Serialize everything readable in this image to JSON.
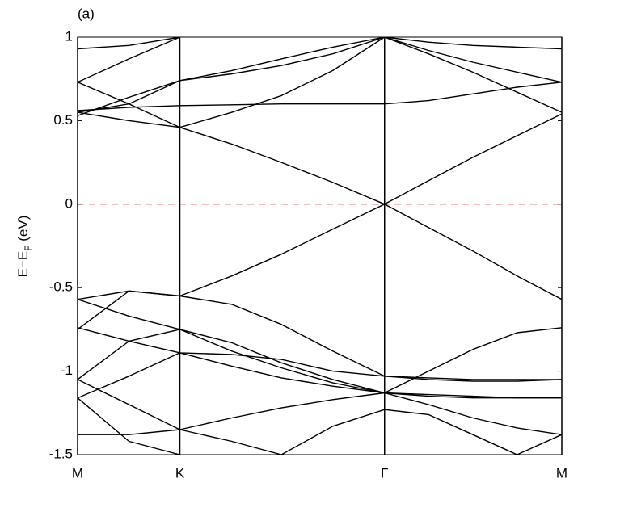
{
  "chart_data": {
    "type": "line",
    "title": "(a)",
    "ylabel": [
      "E−E",
      "F",
      " (eV)"
    ],
    "x": [
      0,
      0.29,
      0.577,
      0.87,
      1.15,
      1.44,
      1.732,
      1.98,
      2.23,
      2.48,
      2.732
    ],
    "xlim": [
      0,
      2.732
    ],
    "xticks": [
      {
        "value": 0,
        "label": "M"
      },
      {
        "value": 0.577,
        "label": "K"
      },
      {
        "value": 1.732,
        "label": "Γ"
      },
      {
        "value": 2.732,
        "label": "M"
      }
    ],
    "ylim": [
      -1.5,
      1
    ],
    "yticks": [
      1,
      0.5,
      0,
      -0.5,
      -1,
      -1.5
    ],
    "xgrid": true,
    "color": "#000000",
    "reference_line": {
      "value": 0,
      "color": "#e87a7a"
    },
    "series": [
      {
        "values": [
          0.55,
          0.5,
          0.46,
          0.36,
          0.25,
          0.13,
          0,
          0.14,
          0.28,
          0.41,
          0.54
        ]
      },
      {
        "values": [
          -0.57,
          -0.52,
          -0.55,
          -0.43,
          -0.3,
          -0.15,
          0,
          -0.14,
          -0.28,
          -0.43,
          -0.57
        ]
      },
      {
        "values": [
          0.56,
          0.58,
          0.59,
          0.595,
          0.6,
          0.6,
          0.6,
          0.62,
          0.66,
          0.7,
          0.73
        ]
      },
      {
        "values": [
          0.73,
          0.87,
          1.0,
          null,
          null,
          null,
          null,
          null,
          null,
          null,
          null
        ]
      },
      {
        "values": [
          0.93,
          0.95,
          1.0,
          null,
          null,
          null,
          null,
          null,
          null,
          null,
          null
        ]
      },
      {
        "values": [
          0.53,
          0.64,
          0.74,
          0.8,
          0.87,
          0.94,
          1.0,
          0.9,
          0.79,
          0.67,
          0.55
        ]
      },
      {
        "values": [
          0.55,
          0.6,
          0.74,
          0.78,
          0.83,
          0.9,
          1.0,
          0.97,
          0.95,
          0.94,
          0.93
        ]
      },
      {
        "values": [
          0.73,
          0.6,
          0.46,
          0.55,
          0.65,
          0.8,
          1.0,
          0.92,
          0.85,
          0.79,
          0.73
        ]
      },
      {
        "values": [
          -0.74,
          -0.82,
          -0.89,
          -0.9,
          -0.93,
          -1.0,
          -1.03,
          -1.04,
          -1.05,
          -1.05,
          -1.05
        ]
      },
      {
        "values": [
          -1.05,
          -0.82,
          -0.75,
          -0.83,
          -0.95,
          -1.05,
          -1.13,
          -1.0,
          -0.87,
          -0.77,
          -0.74
        ]
      },
      {
        "values": [
          -1.16,
          -1.03,
          -0.89,
          -0.97,
          -1.04,
          -1.09,
          -1.13,
          -1.15,
          -1.16,
          -1.16,
          -1.16
        ]
      },
      {
        "values": [
          -1.38,
          -1.38,
          -1.35,
          -1.28,
          -1.22,
          -1.17,
          -1.13,
          -1.14,
          -1.15,
          -1.16,
          -1.16
        ]
      },
      {
        "values": [
          -0.57,
          -0.67,
          -0.75,
          -0.88,
          -0.98,
          -1.07,
          -1.13,
          -1.2,
          -1.28,
          -1.34,
          -1.38
        ]
      },
      {
        "values": [
          -1.05,
          -1.2,
          -1.35,
          -1.42,
          -1.5,
          null,
          null,
          null,
          null,
          null,
          null
        ]
      },
      {
        "values": [
          null,
          null,
          null,
          null,
          -1.5,
          -1.33,
          -1.23,
          -1.26,
          -1.38,
          -1.5,
          -1.38
        ]
      },
      {
        "values": [
          -1.16,
          -1.42,
          -1.5,
          null,
          null,
          null,
          null,
          null,
          null,
          null,
          null
        ]
      },
      {
        "values": [
          -0.75,
          -0.52,
          -0.55,
          -0.6,
          -0.72,
          -0.88,
          -1.03,
          -1.05,
          -1.06,
          -1.06,
          -1.05
        ]
      }
    ]
  }
}
